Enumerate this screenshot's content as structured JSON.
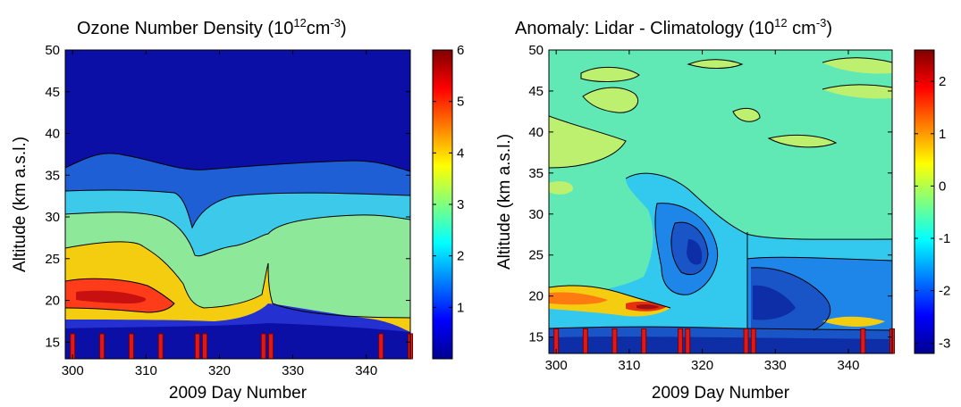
{
  "chart_data": [
    {
      "type": "heatmap",
      "title": "Ozone Number Density (10",
      "title_exp": "12",
      "title_unit": "cm",
      "title_unit_exp": "-3",
      "title_close": ")",
      "xlabel": "2009 Day Number",
      "ylabel": "Altitude (km a.s.l.)",
      "xlim": [
        299,
        346
      ],
      "ylim": [
        13,
        50
      ],
      "xticks": [
        300,
        310,
        320,
        330,
        340
      ],
      "yticks": [
        15,
        20,
        25,
        30,
        35,
        40,
        45,
        50
      ],
      "colorbar_range": [
        0,
        6
      ],
      "colorbar_ticks": [
        1,
        2,
        3,
        4,
        5,
        6
      ],
      "colormap": "jet",
      "bands_by_level": {
        "1_to_2": {
          "color": "#1f5fd6",
          "tops_km": [
            [
              299,
              35
            ],
            [
              303,
              37.5
            ],
            [
              310,
              36.5
            ],
            [
              318,
              35.5
            ],
            [
              326,
              36
            ],
            [
              335,
              36.5
            ],
            [
              346,
              35
            ]
          ]
        },
        "2_to_3": {
          "color": "#3cc9ea",
          "tops_km": [
            [
              299,
              32
            ],
            [
              310,
              32
            ],
            [
              316,
              31
            ],
            [
              320,
              29.5
            ],
            [
              326,
              30.5
            ],
            [
              335,
              31
            ],
            [
              346,
              30
            ]
          ]
        },
        "3_to_4": {
          "color": "#8ee89a",
          "tops_km": [
            [
              299,
              29
            ],
            [
              306,
              29
            ],
            [
              313,
              27.5
            ],
            [
              317,
              25
            ],
            [
              320,
              24.5
            ],
            [
              325,
              25.5
            ],
            [
              328,
              27
            ],
            [
              335,
              28.5
            ],
            [
              346,
              28
            ]
          ]
        },
        "4_to_5": {
          "color": "#f5cd10",
          "tops_km": [
            [
              299,
              26
            ],
            [
              306,
              26.5
            ],
            [
              313,
              25
            ],
            [
              316,
              23
            ],
            [
              325,
              24
            ],
            [
              346,
              24
            ]
          ]
        },
        "5_to_6": {
          "color": "#ff3c1a",
          "tops_km": [
            [
              299,
              21.5
            ],
            [
              306,
              21
            ],
            [
              311,
              20.5
            ],
            [
              313,
              19
            ]
          ]
        }
      },
      "lidar_day_markers": [
        300,
        304,
        308,
        312,
        317,
        318,
        326,
        327,
        342,
        346
      ]
    },
    {
      "type": "heatmap",
      "title": "Anomaly: Lidar - Climatology (10",
      "title_exp": "12",
      "title_unit": " cm",
      "title_unit_exp": "-3",
      "title_close": ")",
      "xlabel": "2009 Day Number",
      "ylabel": "Altitude (km a.s.l.)",
      "xlim": [
        299,
        346
      ],
      "ylim": [
        13,
        50
      ],
      "xticks": [
        300,
        310,
        320,
        330,
        340
      ],
      "yticks": [
        15,
        20,
        25,
        30,
        35,
        40,
        45,
        50
      ],
      "colorbar_range": [
        -3.2,
        2.6
      ],
      "colorbar_ticks": [
        2,
        1,
        0,
        -1,
        -2,
        -3
      ],
      "colormap": "jet",
      "background_value": -0.2,
      "features": [
        {
          "name": "negative anomaly near 318 km 25",
          "min_value": -2.0
        },
        {
          "name": "negative anomaly after day 327 below 24 km",
          "min_value": -2.6
        },
        {
          "name": "positive anomaly near day 311 at 18 km",
          "max_value": 2.3
        }
      ],
      "lidar_day_markers": [
        300,
        304,
        308,
        312,
        317,
        318,
        326,
        327,
        342,
        346
      ]
    }
  ]
}
